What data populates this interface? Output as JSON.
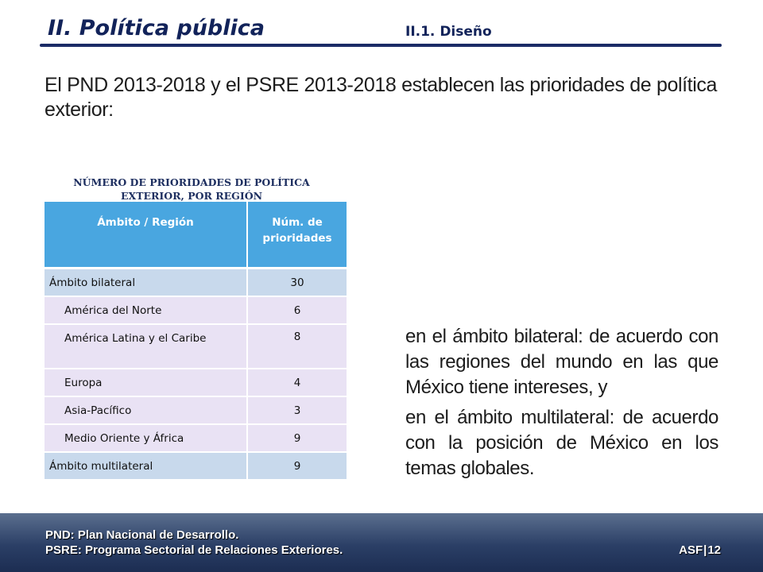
{
  "header": {
    "title": "II. Política pública",
    "subtitle": "II.1. Diseño"
  },
  "intro": "El PND 2013-2018 y el PSRE 2013-2018 establecen las prioridades de política exterior:",
  "table": {
    "caption_line1": "NÚMERO DE PRIORIDADES DE POLÍTICA",
    "caption_line2": "EXTERIOR, POR REGIÓN",
    "col_region": "Ámbito / Región",
    "col_count_line1": "Núm. de",
    "col_count_line2": "prioridades",
    "rows": [
      {
        "label": "Ámbito bilateral",
        "value": "30"
      },
      {
        "label": "América del Norte",
        "value": "6"
      },
      {
        "label": "América Latina y el Caribe",
        "value": "8"
      },
      {
        "label": "Europa",
        "value": "4"
      },
      {
        "label": "Asia-Pacífico",
        "value": "3"
      },
      {
        "label": "Medio Oriente y África",
        "value": "9"
      },
      {
        "label": "Ámbito multilateral",
        "value": "9"
      }
    ]
  },
  "bullets": [
    "en el ámbito bilateral: de acuerdo con las regiones del mundo en las que México tiene intereses, y",
    "en el ámbito multilateral: de acuerdo con la posición de México en los temas globales."
  ],
  "footer": {
    "line1": "PND: Plan Nacional de Desarrollo.",
    "line2": "PSRE: Programa Sectorial de Relaciones Exteriores.",
    "org": "ASF",
    "separator": "|",
    "page": "12"
  },
  "colors": {
    "title": "#12235a",
    "table_header": "#49a6e0",
    "row_bilateral": "#c8d9ec",
    "row_region": "#e9e2f4",
    "footer_band": "#2b3f66"
  }
}
